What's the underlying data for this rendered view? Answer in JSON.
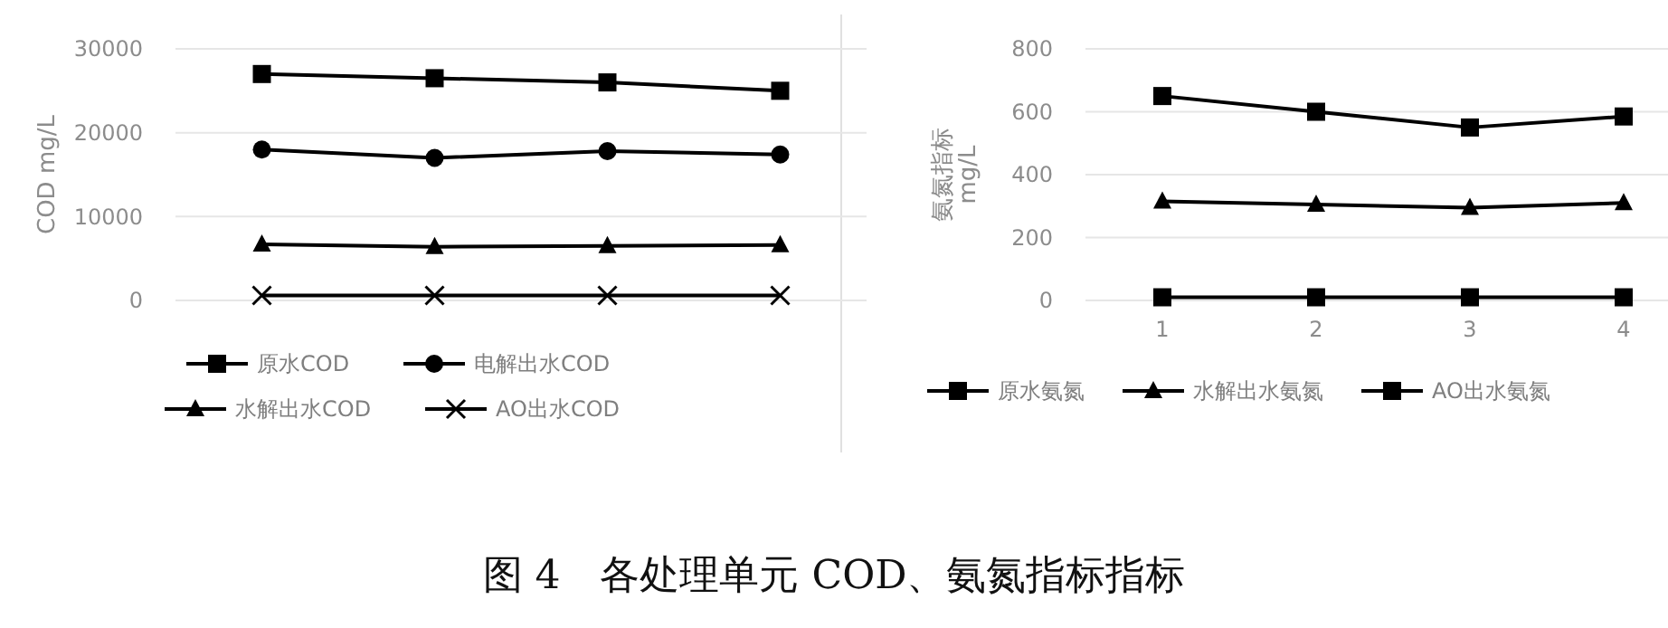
{
  "chart_data": [
    {
      "type": "line",
      "ylabel": "COD mg/L",
      "categories": [
        null,
        null,
        null,
        null
      ],
      "ylim": [
        0,
        30000
      ],
      "yticks": [
        0,
        10000,
        20000,
        30000
      ],
      "grid": "y",
      "legend": "bottom",
      "annotations": [
        "图 4　各处理单元 COD、氨氮指标指标"
      ],
      "series": [
        {
          "name": "原水COD",
          "color": "#000000",
          "marker": "square",
          "values": [
            27000,
            26500,
            26000,
            25000
          ]
        },
        {
          "name": "电解出水COD",
          "color": "#000000",
          "marker": "circle",
          "values": [
            18000,
            17000,
            17800,
            17400
          ]
        },
        {
          "name": "水解出水COD",
          "color": "#000000",
          "marker": "triangle",
          "values": [
            6700,
            6400,
            6500,
            6600
          ]
        },
        {
          "name": "AO出水COD",
          "color": "#000000",
          "marker": "cross",
          "values": [
            600,
            600,
            600,
            600
          ]
        }
      ]
    },
    {
      "type": "line",
      "ylabel": "氨氮指标\nmg/L",
      "categories": [
        "1",
        "2",
        "3",
        "4"
      ],
      "ylim": [
        0,
        800
      ],
      "yticks": [
        0,
        200,
        400,
        600,
        800
      ],
      "grid": "y",
      "legend": "bottom",
      "series": [
        {
          "name": "原水氨氮",
          "color": "#000000",
          "marker": "square",
          "values": [
            650,
            600,
            550,
            585
          ]
        },
        {
          "name": "水解出水氨氮",
          "color": "#000000",
          "marker": "triangle",
          "values": [
            315,
            305,
            295,
            310
          ]
        },
        {
          "name": "AO出水氨氮",
          "color": "#000000",
          "marker": "square",
          "values": [
            10,
            10,
            10,
            10
          ]
        }
      ]
    }
  ]
}
